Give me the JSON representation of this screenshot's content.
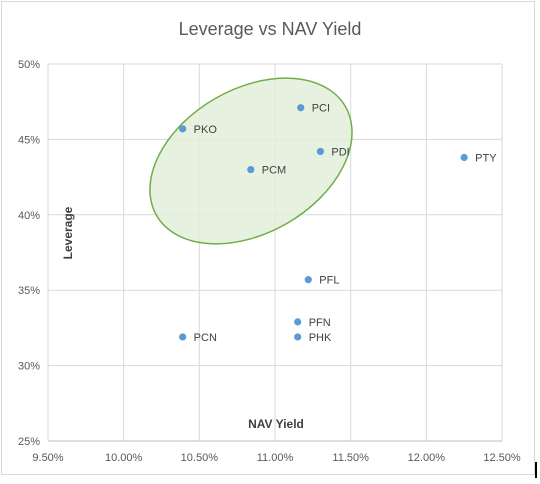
{
  "chart_data": {
    "type": "scatter",
    "title": "Leverage vs NAV Yield",
    "xlabel": "NAV Yield",
    "ylabel": "Leverage",
    "xlim": [
      9.5,
      12.5
    ],
    "ylim": [
      25,
      50
    ],
    "xticks": [
      9.5,
      10.0,
      10.5,
      11.0,
      11.5,
      12.0,
      12.5
    ],
    "xtick_labels": [
      "9.50%",
      "10.00%",
      "10.50%",
      "11.00%",
      "11.50%",
      "12.00%",
      "12.50%"
    ],
    "yticks": [
      25,
      30,
      35,
      40,
      45,
      50
    ],
    "ytick_labels": [
      "25%",
      "30%",
      "35%",
      "40%",
      "45%",
      "50%"
    ],
    "grid": "vertical and horizontal",
    "marker_color": "#5b9bd5",
    "points": [
      {
        "label": "PCI",
        "x": 11.17,
        "y": 47.1
      },
      {
        "label": "PKO",
        "x": 10.39,
        "y": 45.7
      },
      {
        "label": "PDI",
        "x": 11.3,
        "y": 44.2
      },
      {
        "label": "PTY",
        "x": 12.25,
        "y": 43.8
      },
      {
        "label": "PCM",
        "x": 10.84,
        "y": 43.0
      },
      {
        "label": "PFL",
        "x": 11.22,
        "y": 35.7
      },
      {
        "label": "PFN",
        "x": 11.15,
        "y": 32.9
      },
      {
        "label": "PHK",
        "x": 11.15,
        "y": 31.9
      },
      {
        "label": "PCN",
        "x": 10.39,
        "y": 31.9
      }
    ],
    "annotations": [
      {
        "type": "ellipse",
        "fill": "#e2efda",
        "stroke": "#70ad47"
      }
    ]
  }
}
